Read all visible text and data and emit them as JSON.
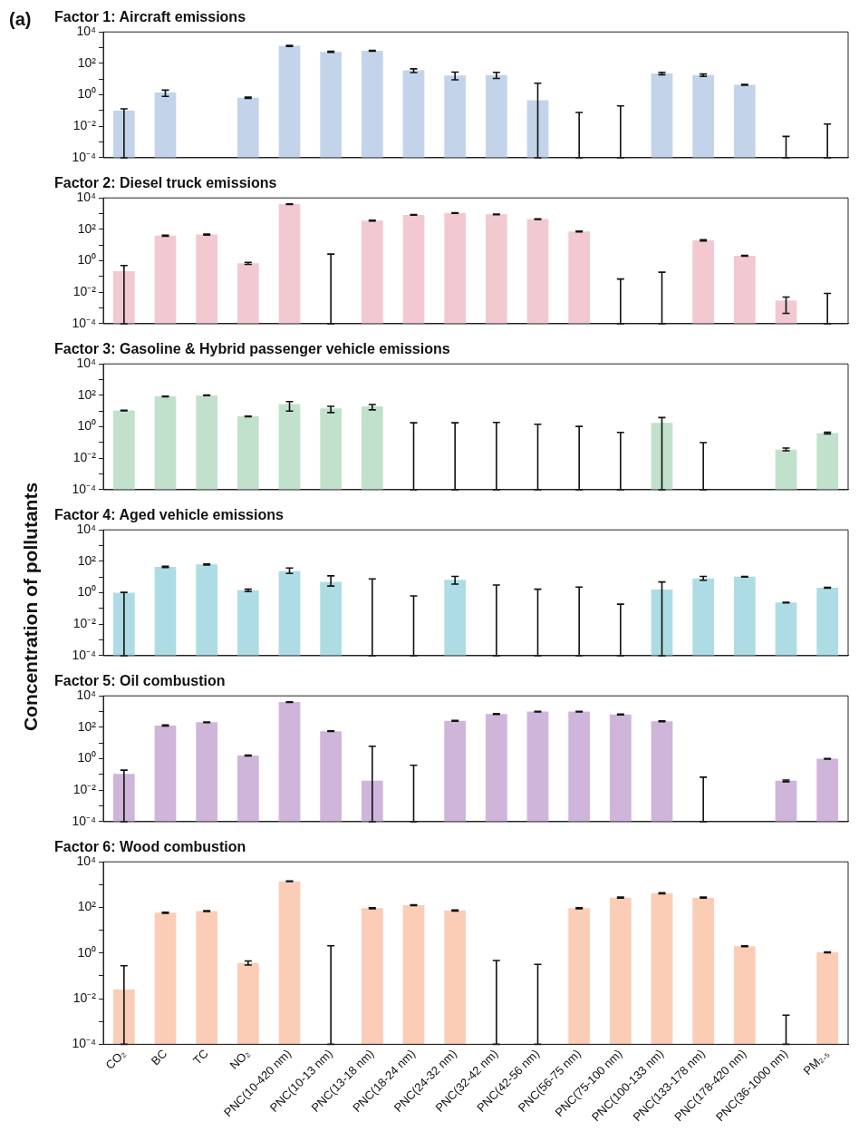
{
  "chart_data": [
    {
      "type": "bar",
      "title": "Factor 1: Aircraft emissions",
      "annotations": [
        "(a)"
      ],
      "log": true,
      "color": "#c3d4ea",
      "categories": [
        null,
        null,
        null,
        null,
        null,
        null,
        null,
        null,
        null,
        null,
        null,
        null,
        null,
        null,
        null,
        null,
        null,
        null
      ],
      "values": [
        0.1,
        1.4,
        null,
        0.66,
        1300,
        540,
        630,
        36,
        17,
        18,
        0.46,
        0.0001,
        0.0001,
        23,
        18,
        4.4,
        0.0001,
        0.0001
      ],
      "errors": [
        [
          0.0001,
          0.13
        ],
        [
          0.8,
          2
        ],
        null,
        [
          0.6,
          0.72
        ],
        [
          1200,
          1400
        ],
        [
          500,
          580
        ],
        [
          590,
          670
        ],
        [
          26,
          45
        ],
        [
          9,
          28
        ],
        [
          11,
          27
        ],
        [
          0.0001,
          5.5
        ],
        [
          0.0001,
          0.076
        ],
        [
          0.0001,
          0.2
        ],
        [
          19,
          27
        ],
        [
          15,
          21
        ],
        [
          4.1,
          4.7
        ],
        [
          0.0001,
          0.0023
        ],
        [
          0.0001,
          0.014
        ]
      ],
      "ylim": [
        0.0001,
        10000
      ],
      "yticks": [
        {
          "value": 0.0001,
          "label": "10⁻⁴"
        },
        {
          "value": 0.001,
          "label": null
        },
        {
          "value": 0.01,
          "label": "10⁻²"
        },
        {
          "value": 0.1,
          "label": null
        },
        {
          "value": 1,
          "label": "10⁰"
        },
        {
          "value": 10,
          "label": null
        },
        {
          "value": 100,
          "label": "10²"
        },
        {
          "value": 1000,
          "label": null
        },
        {
          "value": 10000,
          "label": "10⁴"
        }
      ]
    },
    {
      "type": "bar",
      "title": "Factor 2: Diesel truck emissions",
      "log": true,
      "color": "#f2c9d1",
      "categories": [
        null,
        null,
        null,
        null,
        null,
        null,
        null,
        null,
        null,
        null,
        null,
        null,
        null,
        null,
        null,
        null,
        null,
        null
      ],
      "values": [
        0.22,
        40,
        47,
        0.7,
        4000,
        0.0001,
        360,
        830,
        1100,
        900,
        450,
        74,
        0.0001,
        0.0001,
        20,
        2.1,
        0.003,
        0.0001
      ],
      "errors": [
        [
          0.0001,
          0.5
        ],
        [
          37,
          43
        ],
        [
          44,
          50
        ],
        [
          0.6,
          0.8
        ],
        [
          3800,
          4200
        ],
        [
          0.0001,
          2.7
        ],
        [
          340,
          380
        ],
        [
          790,
          870
        ],
        [
          1050,
          1150
        ],
        [
          860,
          940
        ],
        [
          430,
          470
        ],
        [
          70,
          78
        ],
        [
          0.0001,
          0.07
        ],
        [
          0.0001,
          0.19
        ],
        [
          18,
          22
        ],
        [
          2,
          2.2
        ],
        [
          0.00046,
          0.005
        ],
        [
          0.0001,
          0.0085
        ]
      ],
      "ylim": [
        0.0001,
        10000
      ],
      "yticks": [
        {
          "value": 0.0001,
          "label": "10⁻⁴"
        },
        {
          "value": 0.001,
          "label": null
        },
        {
          "value": 0.01,
          "label": "10⁻²"
        },
        {
          "value": 0.1,
          "label": null
        },
        {
          "value": 1,
          "label": "10⁰"
        },
        {
          "value": 10,
          "label": null
        },
        {
          "value": 100,
          "label": "10²"
        },
        {
          "value": 1000,
          "label": null
        },
        {
          "value": 10000,
          "label": "10⁴"
        }
      ]
    },
    {
      "type": "bar",
      "title": "Factor 3: Gasoline & Hybrid passenger vehicle emissions",
      "log": true,
      "color": "#c2e1cc",
      "categories": [
        null,
        null,
        null,
        null,
        null,
        null,
        null,
        null,
        null,
        null,
        null,
        null,
        null,
        null,
        null,
        null,
        null,
        null
      ],
      "values": [
        11,
        85,
        100,
        4.6,
        28,
        15,
        20,
        0.0001,
        0.0001,
        0.0001,
        0.0001,
        0.0001,
        0.0001,
        1.8,
        0.0001,
        null,
        0.036,
        0.4
      ],
      "errors": [
        [
          10.5,
          11.5
        ],
        [
          81,
          89
        ],
        [
          96,
          104
        ],
        [
          4.4,
          4.8
        ],
        [
          10,
          40
        ],
        [
          8,
          20
        ],
        [
          12,
          26
        ],
        [
          0.0001,
          1.8
        ],
        [
          0.0001,
          1.8
        ],
        [
          0.0001,
          1.9
        ],
        [
          0.0001,
          1.45
        ],
        [
          0.0001,
          1.07
        ],
        [
          0.0001,
          0.44
        ],
        [
          0.0001,
          3.9
        ],
        [
          0.0001,
          0.1
        ],
        null,
        [
          0.03,
          0.045
        ],
        [
          0.35,
          0.45
        ]
      ],
      "ylim": [
        0.0001,
        10000
      ],
      "yticks": [
        {
          "value": 0.0001,
          "label": "10⁻⁴"
        },
        {
          "value": 0.001,
          "label": null
        },
        {
          "value": 0.01,
          "label": "10⁻²"
        },
        {
          "value": 0.1,
          "label": null
        },
        {
          "value": 1,
          "label": "10⁰"
        },
        {
          "value": 10,
          "label": null
        },
        {
          "value": 100,
          "label": "10²"
        },
        {
          "value": 1000,
          "label": null
        },
        {
          "value": 10000,
          "label": "10⁴"
        }
      ]
    },
    {
      "type": "bar",
      "title": "Factor 4: Aged vehicle emissions",
      "ylabel": "Concentration of pollutants",
      "log": true,
      "color": "#addce4",
      "categories": [
        null,
        null,
        null,
        null,
        null,
        null,
        null,
        null,
        null,
        null,
        null,
        null,
        null,
        null,
        null,
        null,
        null,
        null
      ],
      "values": [
        1.0,
        44,
        63,
        1.45,
        24,
        4.9,
        0.0001,
        0.0001,
        6.6,
        0.0001,
        0.0001,
        0.0001,
        0.0001,
        1.6,
        8.3,
        10.5,
        0.24,
        2.1
      ],
      "errors": [
        [
          0.0001,
          1.07
        ],
        [
          40,
          48
        ],
        [
          59,
          67
        ],
        [
          1.2,
          1.7
        ],
        [
          17,
          38
        ],
        [
          2.7,
          12
        ],
        [
          0.0001,
          7.7
        ],
        [
          0.0001,
          0.63
        ],
        [
          3.6,
          11
        ],
        [
          0.0001,
          3.1
        ],
        [
          0.0001,
          1.7
        ],
        [
          0.0001,
          2.3
        ],
        [
          0.0001,
          0.19
        ],
        [
          0.0001,
          4.9
        ],
        [
          6.3,
          11
        ],
        [
          10,
          11
        ],
        [
          0.23,
          0.25
        ],
        [
          2,
          2.2
        ]
      ],
      "ylim": [
        0.0001,
        10000
      ],
      "yticks": [
        {
          "value": 0.0001,
          "label": "10⁻⁴"
        },
        {
          "value": 0.001,
          "label": null
        },
        {
          "value": 0.01,
          "label": "10⁻²"
        },
        {
          "value": 0.1,
          "label": null
        },
        {
          "value": 1,
          "label": "10⁰"
        },
        {
          "value": 10,
          "label": null
        },
        {
          "value": 100,
          "label": "10²"
        },
        {
          "value": 1000,
          "label": null
        },
        {
          "value": 10000,
          "label": "10⁴"
        }
      ]
    },
    {
      "type": "bar",
      "title": "Factor 5: Oil combustion",
      "log": true,
      "color": "#cfb5da",
      "categories": [
        null,
        null,
        null,
        null,
        null,
        null,
        null,
        null,
        null,
        null,
        null,
        null,
        null,
        null,
        null,
        null,
        null,
        null
      ],
      "values": [
        0.11,
        130,
        210,
        1.6,
        4000,
        57,
        0.04,
        0.0001,
        260,
        690,
        1000,
        1000,
        650,
        240,
        0.0001,
        null,
        0.04,
        1.0
      ],
      "errors": [
        [
          0.0001,
          0.19
        ],
        [
          120,
          140
        ],
        [
          200,
          220
        ],
        [
          1.5,
          1.7
        ],
        [
          3800,
          4200
        ],
        [
          54,
          60
        ],
        [
          0.0001,
          6.3
        ],
        [
          0.0001,
          0.39
        ],
        [
          245,
          275
        ],
        [
          650,
          730
        ],
        [
          950,
          1050
        ],
        [
          950,
          1050
        ],
        [
          610,
          690
        ],
        [
          225,
          255
        ],
        [
          0.0001,
          0.068
        ],
        null,
        [
          0.035,
          0.045
        ],
        [
          0.95,
          1.05
        ]
      ],
      "ylim": [
        0.0001,
        10000
      ],
      "yticks": [
        {
          "value": 0.0001,
          "label": "10⁻⁴"
        },
        {
          "value": 0.001,
          "label": null
        },
        {
          "value": 0.01,
          "label": "10⁻²"
        },
        {
          "value": 0.1,
          "label": null
        },
        {
          "value": 1,
          "label": "10⁰"
        },
        {
          "value": 10,
          "label": null
        },
        {
          "value": 100,
          "label": "10²"
        },
        {
          "value": 1000,
          "label": null
        },
        {
          "value": 10000,
          "label": "10⁴"
        }
      ]
    },
    {
      "type": "bar",
      "title": "Factor 6: Wood combustion",
      "log": true,
      "color": "#fbcdb6",
      "categories": [
        "CO₂",
        "BC",
        "TC",
        "NO₂",
        "PNC(10-420 nm)",
        "PNC(10-13 nm)",
        "PNC(13-18 nm)",
        "PNC(18-24 nm)",
        "PNC(24-32 nm)",
        "PNC(32-42 nm)",
        "PNC(42-56 nm)",
        "PNC(56-75 nm)",
        "PNC(75-100 nm)",
        "PNC(100-133 nm)",
        "PNC(133-178 nm)",
        "PNC(178-420 nm)",
        "PNC(36-1000 nm)",
        "PM₂.₅"
      ],
      "values": [
        0.025,
        59,
        69,
        0.37,
        1400,
        0.0001,
        93,
        126,
        74,
        0.0001,
        0.0001,
        93,
        270,
        420,
        270,
        2.0,
        0.0001,
        1.07
      ],
      "errors": [
        [
          0.0001,
          0.28
        ],
        [
          56,
          62
        ],
        [
          66,
          72
        ],
        [
          0.3,
          0.45
        ],
        [
          1350,
          1450
        ],
        [
          0.0001,
          2.1
        ],
        [
          88,
          98
        ],
        [
          120,
          132
        ],
        [
          70,
          78
        ],
        [
          0.0001,
          0.47
        ],
        [
          0.0001,
          0.32
        ],
        [
          88,
          98
        ],
        [
          258,
          282
        ],
        [
          400,
          440
        ],
        [
          258,
          282
        ],
        [
          1.9,
          2.1
        ],
        [
          0.0001,
          0.0019
        ],
        [
          1.02,
          1.12
        ]
      ],
      "ylim": [
        0.0001,
        10000
      ],
      "yticks": [
        {
          "value": 0.0001,
          "label": "10⁻⁴"
        },
        {
          "value": 0.001,
          "label": null
        },
        {
          "value": 0.01,
          "label": "10⁻²"
        },
        {
          "value": 0.1,
          "label": null
        },
        {
          "value": 1,
          "label": "10⁰"
        },
        {
          "value": 10,
          "label": null
        },
        {
          "value": 100,
          "label": "10²"
        },
        {
          "value": 1000,
          "label": null
        },
        {
          "value": 10000,
          "label": "10⁴"
        }
      ]
    }
  ]
}
